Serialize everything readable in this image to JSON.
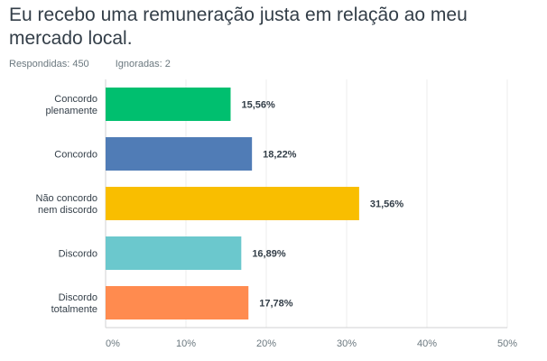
{
  "title": "Eu recebo uma remuneração justa em relação ao meu mercado local.",
  "stats": {
    "answered": "Respondidas: 450",
    "skipped": "Ignoradas: 2"
  },
  "chart_data": {
    "type": "bar",
    "orientation": "horizontal",
    "categories": [
      [
        "Concordo",
        "plenamente"
      ],
      [
        "Concordo"
      ],
      [
        "Não concordo",
        "nem discordo"
      ],
      [
        "Discordo"
      ],
      [
        "Discordo",
        "totalmente"
      ]
    ],
    "values": [
      15.56,
      18.22,
      31.56,
      16.89,
      17.78
    ],
    "labels": [
      "15,56%",
      "18,22%",
      "31,56%",
      "16,89%",
      "17,78%"
    ],
    "colors": [
      "#00bf6f",
      "#507cb6",
      "#f9be00",
      "#6bc8cd",
      "#ff8b4f"
    ],
    "xlim": [
      0,
      50
    ],
    "ticks": [
      0,
      10,
      20,
      30,
      40,
      50
    ],
    "tick_labels": [
      "0%",
      "10%",
      "20%",
      "30%",
      "40%",
      "50%"
    ],
    "grid": true
  }
}
